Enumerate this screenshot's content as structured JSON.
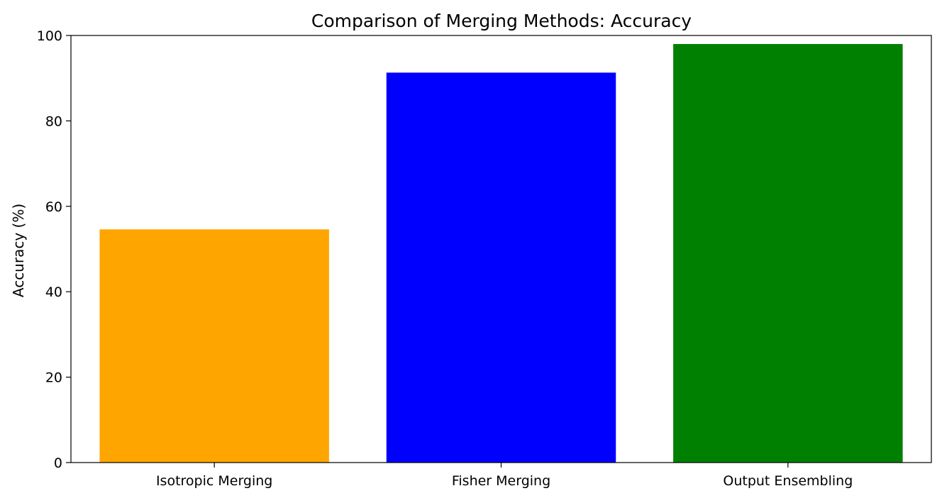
{
  "chart_data": {
    "type": "bar",
    "title": "Comparison of Merging Methods: Accuracy",
    "xlabel": "",
    "ylabel": "Accuracy (%)",
    "categories": [
      "Isotropic Merging",
      "Fisher Merging",
      "Output Ensembling"
    ],
    "values": [
      54.6,
      91.3,
      98.0
    ],
    "colors": [
      "#FFA500",
      "#0000FF",
      "#008000"
    ],
    "ylim": [
      0,
      100
    ],
    "yticks": [
      "0",
      "20",
      "40",
      "60",
      "80",
      "100"
    ],
    "grid": false,
    "legend": "none"
  }
}
